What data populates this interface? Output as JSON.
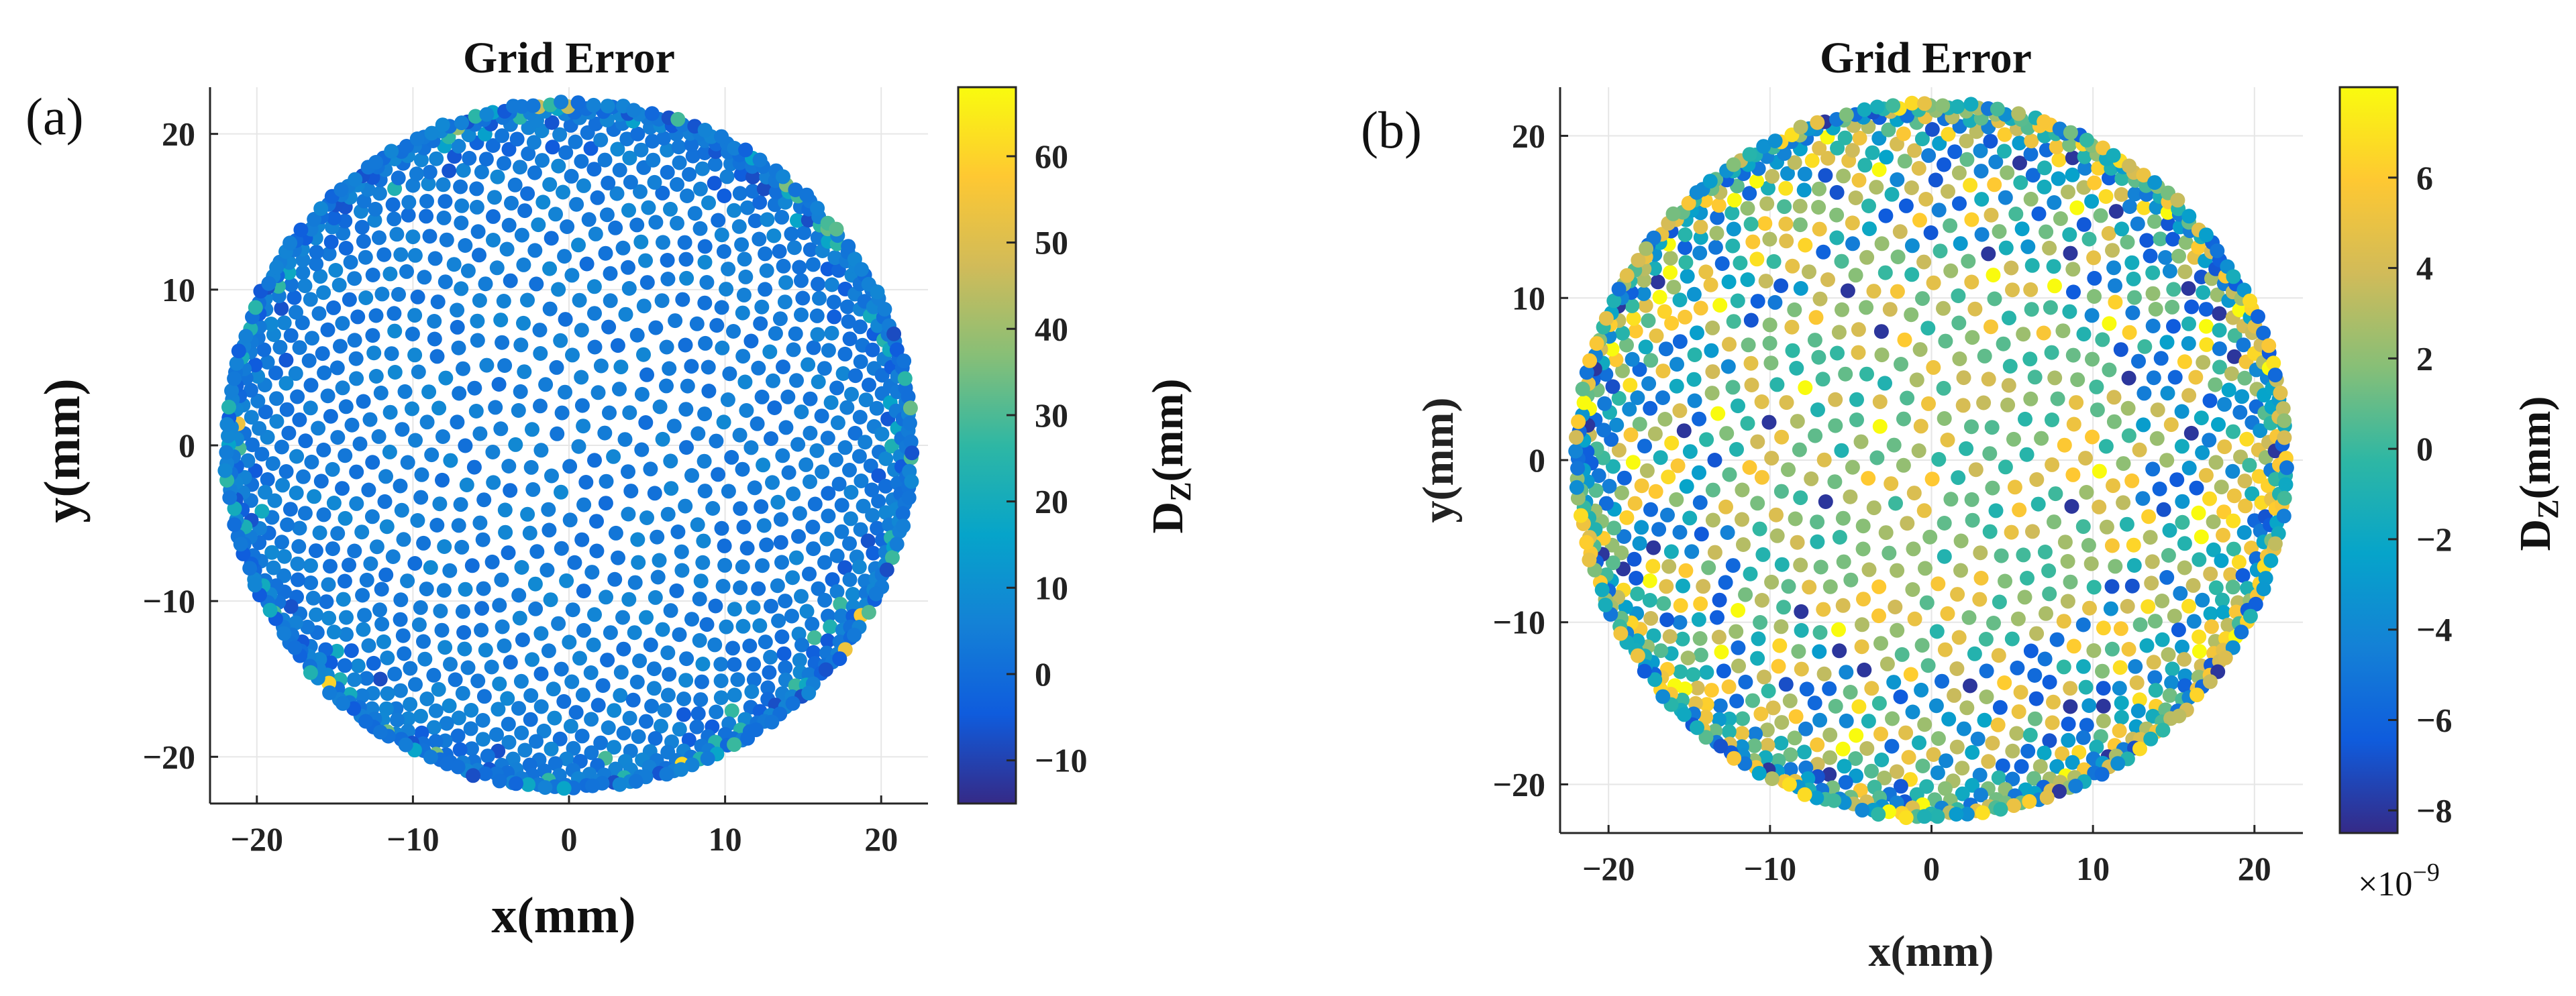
{
  "chart_data": [
    {
      "type": "scatter",
      "panel_label": "(a)",
      "title": "Grid Error",
      "xlabel": "x(mm)",
      "ylabel": "y(mm)",
      "xlim": [
        -23,
        23
      ],
      "ylim": [
        -23,
        23
      ],
      "xticks": [
        -20,
        -10,
        0,
        10,
        20
      ],
      "yticks": [
        -20,
        -10,
        0,
        10,
        20
      ],
      "xtick_labels": [
        "−20",
        "−10",
        "0",
        "10",
        "20"
      ],
      "ytick_labels": [
        "−20",
        "−10",
        "0",
        "10",
        "20"
      ],
      "grid": true,
      "colorbar": {
        "label": "D_Z(mm)",
        "label_main": "D",
        "label_sub": "Z",
        "label_rest": "(mm)",
        "range": [
          -15,
          68
        ],
        "ticks": [
          -10,
          0,
          10,
          20,
          30,
          40,
          50,
          60
        ],
        "tick_labels": [
          "−10",
          "0",
          "10",
          "20",
          "30",
          "40",
          "50",
          "60"
        ],
        "colormap": "parula",
        "exponent": ""
      },
      "points_description": "approx. 1500 points on a disk of radius ~22 mm; most values between -5 and 10 mm, isolated edge points up to ~60 mm",
      "point_count": 1500,
      "disk_radius": 22,
      "value_base": [
        0,
        8
      ],
      "value_outliers": [
        20,
        65
      ]
    },
    {
      "type": "scatter",
      "panel_label": "(b)",
      "title": "Grid Error",
      "xlabel": "x(mm)",
      "ylabel": "y(mm)",
      "xlim": [
        -23,
        23
      ],
      "ylim": [
        -23,
        23
      ],
      "xticks": [
        -20,
        -10,
        0,
        10,
        20
      ],
      "yticks": [
        -20,
        -10,
        0,
        10,
        20
      ],
      "xtick_labels": [
        "−20",
        "−10",
        "0",
        "10",
        "20"
      ],
      "ytick_labels": [
        "−20",
        "−10",
        "0",
        "10",
        "20"
      ],
      "grid": true,
      "colorbar": {
        "label": "D_Z(mm)",
        "label_main": "D",
        "label_sub": "Z",
        "label_rest": "(mm)",
        "range": [
          -8.5,
          8
        ],
        "ticks": [
          -8,
          -6,
          -4,
          -2,
          0,
          2,
          4,
          6
        ],
        "tick_labels": [
          "−8",
          "−6",
          "−4",
          "−2",
          "0",
          "2",
          "4",
          "6"
        ],
        "colormap": "parula",
        "exponent": "×10",
        "exponent_power": "−9"
      },
      "points_description": "approx. 1500 points on a disk of radius ~22 mm; values spread between -8e-9 and 8e-9 mm",
      "point_count": 1500,
      "disk_radius": 22,
      "value_base": [
        -7,
        7
      ],
      "value_outliers": [
        -8,
        8
      ]
    }
  ],
  "colormap_stops": [
    "#352a87",
    "#0f5cdd",
    "#1481d6",
    "#06a4ca",
    "#2eb7a4",
    "#87bf77",
    "#d1bb59",
    "#fec832",
    "#f9fb0e"
  ]
}
